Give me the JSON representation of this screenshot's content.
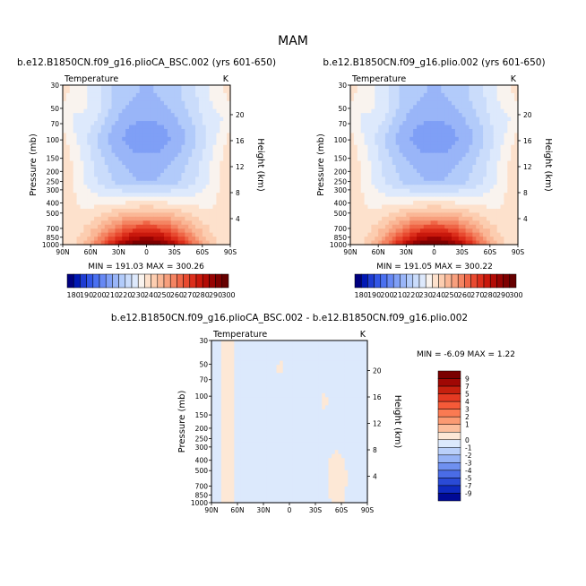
{
  "figure": {
    "title": "MAM"
  },
  "chart_data": [
    {
      "type": "heatmap",
      "title": "b.e12.B1850CN.f09_g16.plioCA_BSC.002 (yrs 601-650)",
      "variable": "Temperature",
      "units": "K",
      "xlabel": "",
      "ylabel": "Pressure (mb)",
      "y2label": "Height (km)",
      "x_ticks": [
        "90N",
        "60N",
        "30N",
        "0",
        "30S",
        "60S",
        "90S"
      ],
      "y_ticks": [
        "30",
        "50",
        "70",
        "100",
        "150",
        "200",
        "250",
        "300",
        "400",
        "500",
        "700",
        "850",
        "1000"
      ],
      "y_tick_values": [
        30,
        50,
        70,
        100,
        150,
        200,
        250,
        300,
        400,
        500,
        700,
        850,
        1000
      ],
      "y2_ticks": [
        "4",
        "8",
        "12",
        "16",
        "20"
      ],
      "ylim": [
        1000,
        30
      ],
      "xlim": [
        90,
        -90
      ],
      "y_scale": "log",
      "stats": "MIN = 191.03   MAX = 300.26",
      "colorbar_labels": [
        "180",
        "190",
        "200",
        "210",
        "220",
        "230",
        "240",
        "250",
        "260",
        "270",
        "280",
        "290",
        "300"
      ],
      "contour_levels": [
        180,
        185,
        190,
        195,
        200,
        205,
        210,
        215,
        220,
        225,
        230,
        235,
        240,
        245,
        250,
        255,
        260,
        265,
        270,
        275,
        280,
        285,
        290,
        295,
        300
      ]
    },
    {
      "type": "heatmap",
      "title": "b.e12.B1850CN.f09_g16.plio.002 (yrs 601-650)",
      "variable": "Temperature",
      "units": "K",
      "xlabel": "",
      "ylabel": "Pressure (mb)",
      "y2label": "Height (km)",
      "x_ticks": [
        "90N",
        "60N",
        "30N",
        "0",
        "30S",
        "60S",
        "90S"
      ],
      "y_ticks": [
        "30",
        "50",
        "70",
        "100",
        "150",
        "200",
        "250",
        "300",
        "400",
        "500",
        "700",
        "850",
        "1000"
      ],
      "y_tick_values": [
        30,
        50,
        70,
        100,
        150,
        200,
        250,
        300,
        400,
        500,
        700,
        850,
        1000
      ],
      "y2_ticks": [
        "4",
        "8",
        "12",
        "16",
        "20"
      ],
      "ylim": [
        1000,
        30
      ],
      "xlim": [
        90,
        -90
      ],
      "y_scale": "log",
      "stats": "MIN = 191.05   MAX = 300.22",
      "colorbar_labels": [
        "180",
        "190",
        "200",
        "210",
        "220",
        "230",
        "240",
        "250",
        "260",
        "270",
        "280",
        "290",
        "300"
      ],
      "contour_levels": [
        180,
        185,
        190,
        195,
        200,
        205,
        210,
        215,
        220,
        225,
        230,
        235,
        240,
        245,
        250,
        255,
        260,
        265,
        270,
        275,
        280,
        285,
        290,
        295,
        300
      ]
    },
    {
      "type": "heatmap",
      "title": "b.e12.B1850CN.f09_g16.plioCA_BSC.002 - b.e12.B1850CN.f09_g16.plio.002",
      "variable": "Temperature",
      "units": "K",
      "xlabel": "",
      "ylabel": "Pressure (mb)",
      "y2label": "Height (km)",
      "x_ticks": [
        "90N",
        "60N",
        "30N",
        "0",
        "30S",
        "60S",
        "90S"
      ],
      "y_ticks": [
        "30",
        "50",
        "70",
        "100",
        "150",
        "200",
        "250",
        "300",
        "400",
        "500",
        "700",
        "850",
        "1000"
      ],
      "y_tick_values": [
        30,
        50,
        70,
        100,
        150,
        200,
        250,
        300,
        400,
        500,
        700,
        850,
        1000
      ],
      "y2_ticks": [
        "4",
        "8",
        "12",
        "16",
        "20"
      ],
      "ylim": [
        1000,
        30
      ],
      "xlim": [
        90,
        -90
      ],
      "y_scale": "log",
      "stats": "MIN =   -6.09   MAX =    1.22",
      "colorbar_labels": [
        "9",
        "7",
        "5",
        "4",
        "3",
        "2",
        "1",
        "0",
        "-1",
        "-2",
        "-3",
        "-4",
        "-5",
        "-7",
        "-9"
      ],
      "contour_levels": [
        -9,
        -7,
        -5,
        -4,
        -3,
        -2,
        -1,
        0,
        1,
        2,
        3,
        4,
        5,
        7,
        9
      ]
    }
  ],
  "colors": {
    "abs_scale": [
      "#00007f",
      "#0018b4",
      "#1e3cd2",
      "#3256e6",
      "#4a70f0",
      "#6688f4",
      "#7f9ff6",
      "#99b5f8",
      "#b2cbfa",
      "#cadcfb",
      "#dde9fc",
      "#f9f3ee",
      "#fde1cc",
      "#fccdb0",
      "#fab796",
      "#f79f7d",
      "#f48462",
      "#ef6647",
      "#e84a30",
      "#dc2e1b",
      "#c9180c",
      "#b20b05",
      "#970302",
      "#7e0000",
      "#660000"
    ],
    "diff_scale": [
      "#7a0000",
      "#a00804",
      "#c6200e",
      "#e43a22",
      "#f55a38",
      "#fa7a52",
      "#fb9a72",
      "#fcbe9c",
      "#fde8d6",
      "#dce9fc",
      "#bad0fa",
      "#96b3f6",
      "#6f90f0",
      "#4a6ce6",
      "#2a4ad6",
      "#0f2ac0",
      "#000a96"
    ]
  }
}
